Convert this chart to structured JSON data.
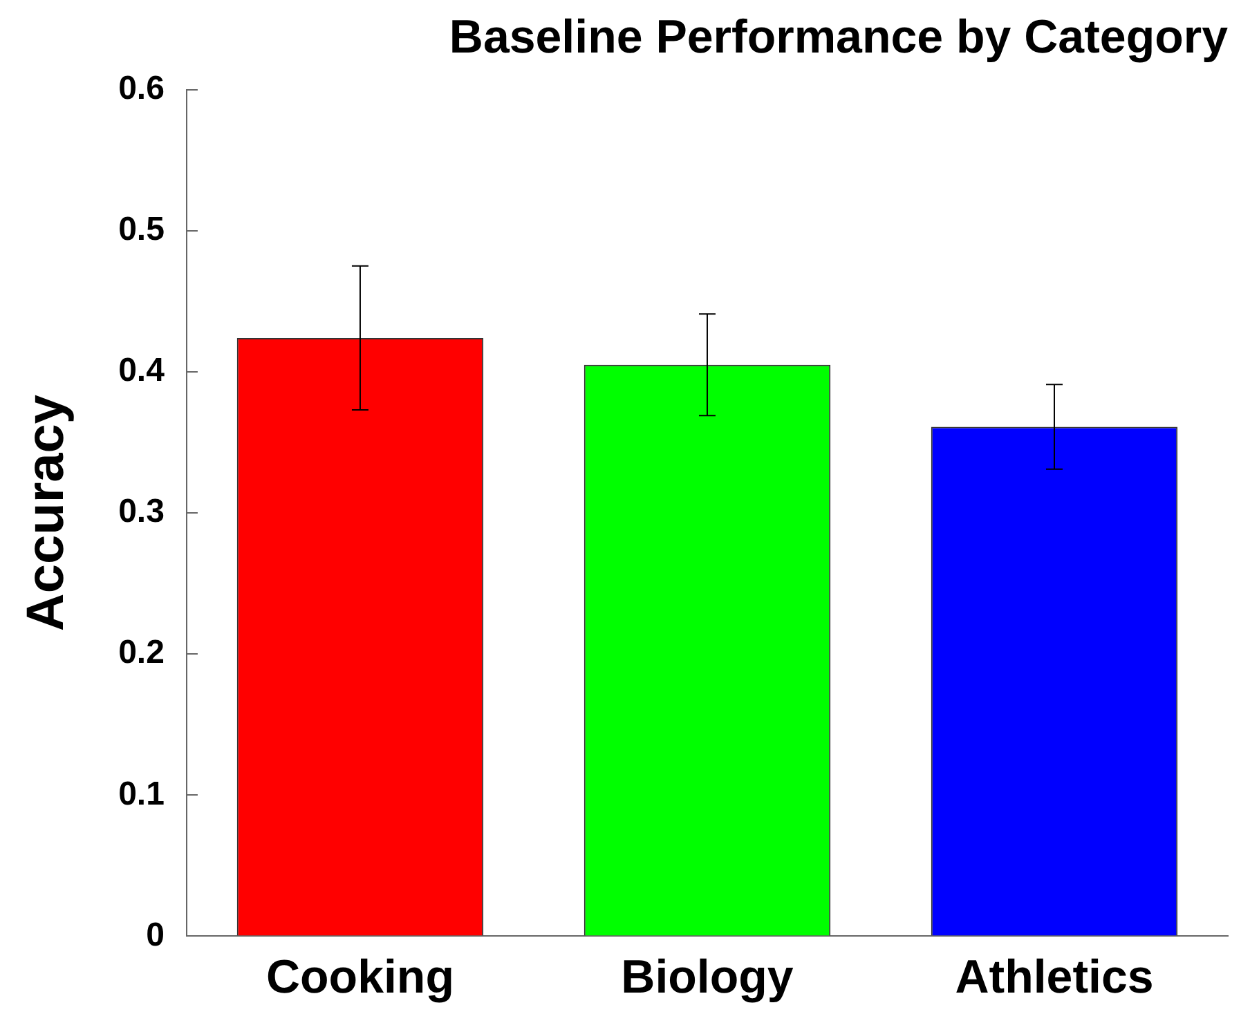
{
  "chart_data": {
    "type": "bar",
    "title": "Baseline Performance by Category",
    "ylabel": "Accuracy",
    "categories": [
      "Cooking",
      "Biology",
      "Athletics"
    ],
    "values": [
      0.424,
      0.405,
      0.361
    ],
    "colors": [
      "#ff0000",
      "#00ff00",
      "#0000ff"
    ],
    "errors": [
      [
        0.373,
        0.475
      ],
      [
        0.369,
        0.441
      ],
      [
        0.331,
        0.391
      ]
    ],
    "ylim": [
      0,
      0.6
    ],
    "yticks": [
      0,
      0.1,
      0.2,
      0.3,
      0.4,
      0.5,
      0.6
    ],
    "grid": false,
    "legend": false
  }
}
